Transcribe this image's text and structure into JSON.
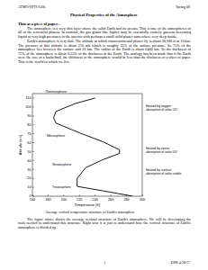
{
  "header": {
    "left": "ATMO/OPTI 656b",
    "right": "Spring 08"
  },
  "title": "Physical Properties of the Atmosphere",
  "section": "Thin as a piece of paper…",
  "paragraphs": [
    "The atmosphere is a very thin layer above the solid Earth and its oceans. This is true of the atmospheres of all of the terrestrial planets. In contrast, the gas giants like Jupiter may be essentially entirely gaseous becoming liquid at very high pressures in the interior with perhaps a small solid planet somewhere very deep inside.",
    "Earth's atmosphere is very thin. The altitude at which transcontinental planes fly is about 30,000 ft or 10 km. The pressure at this altitude is about 250 mb which is roughly 25% of the surface pressure. So 75% of the atmosphere lies between the surface and 10 km. The radius of the Earth is about 6400 km. So the thickness of 75% of the atmosphere is about 0.15% of the thickness of the Earth. The analogy has been made that if the Earth were the size of a basketball, the thickness of the atmosphere would be less than the thickness of a sheet of paper. This is the world in which we live."
  ],
  "chart_data": {
    "type": "line",
    "x_label": "Temperature (K)",
    "y_label": "Altitude (km)",
    "x": [
      288,
      250,
      217,
      217,
      228,
      250,
      271,
      271,
      250,
      220,
      190,
      187,
      190,
      215,
      240
    ],
    "series": [
      {
        "values": [
          0,
          6,
          11,
          20,
          32,
          41,
          48,
          52,
          61,
          71,
          82,
          88,
          95,
          104,
          110
        ],
        "color": "#000000"
      }
    ],
    "xlim": [
      160,
      300
    ],
    "xticks": [
      160,
      180,
      200,
      220,
      240,
      260,
      280,
      300
    ],
    "ylim": [
      0,
      115
    ],
    "yticks": [
      0,
      10,
      20,
      30,
      40,
      50,
      60,
      70,
      80,
      90,
      100,
      110
    ],
    "layer_labels": [
      "Thermosphere",
      "Mesosphere",
      "Stratosphere",
      "Troposphere"
    ],
    "annotations": [
      {
        "lines": [
          "Heated by oxygen",
          "absorption of solar UV"
        ]
      },
      {
        "lines": [
          "Heated by ozone",
          "absorption of solar UV"
        ]
      },
      {
        "lines": [
          "Heated by surface",
          "absorption of solar visible"
        ]
      }
    ]
  },
  "caption": "Average vertical temperature structure of Earth's atmosphere",
  "closing_paragraph": "The figure above shows the average vertical structure of Earth's atmosphere. We will be developing the tools needed to understand this structure. Right now it is just to understand how the vertical structure of Earth's atmosphere is divided up.",
  "footer": {
    "page": 1,
    "note": "ERK 4/20/17"
  }
}
